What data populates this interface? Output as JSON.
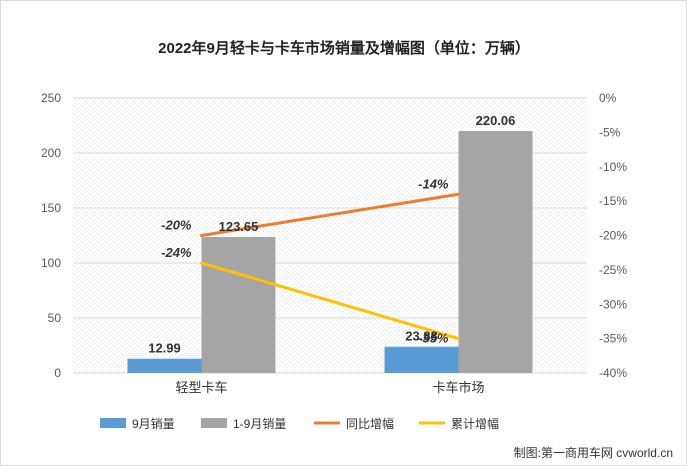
{
  "chart_data": {
    "type": "bar",
    "title": "2022年9月轻卡与卡车市场销量及增幅图（单位：万辆）",
    "categories": [
      "轻型卡车",
      "卡车市场"
    ],
    "series": [
      {
        "name": "9月销量",
        "kind": "bar",
        "axis": "left",
        "color": "#5b9bd5",
        "values": [
          12.99,
          23.88
        ],
        "labels": [
          "12.99",
          "23.88"
        ]
      },
      {
        "name": "1-9月销量",
        "kind": "bar",
        "axis": "left",
        "color": "#a5a5a5",
        "values": [
          123.65,
          220.06
        ],
        "labels": [
          "123.65",
          "220.06"
        ]
      },
      {
        "name": "同比增幅",
        "kind": "line",
        "axis": "right",
        "color": "#ed7d31",
        "values": [
          -20,
          -14
        ],
        "labels": [
          "-20%",
          "-14%"
        ]
      },
      {
        "name": "累计增幅",
        "kind": "line",
        "axis": "right",
        "color": "#ffc000",
        "values": [
          -24,
          -35
        ],
        "labels": [
          "-24%",
          "-35%"
        ]
      }
    ],
    "y_left": {
      "min": 0,
      "max": 250,
      "ticks": [
        "0",
        "50",
        "100",
        "150",
        "200",
        "250"
      ]
    },
    "y_right": {
      "min": -40,
      "max": 0,
      "ticks": [
        "-40%",
        "-35%",
        "-30%",
        "-25%",
        "-20%",
        "-15%",
        "-10%",
        "-5%",
        "0%"
      ]
    },
    "grid": true,
    "legend_position": "bottom",
    "source": "制图:第一商用车网 cvworld.cn"
  }
}
